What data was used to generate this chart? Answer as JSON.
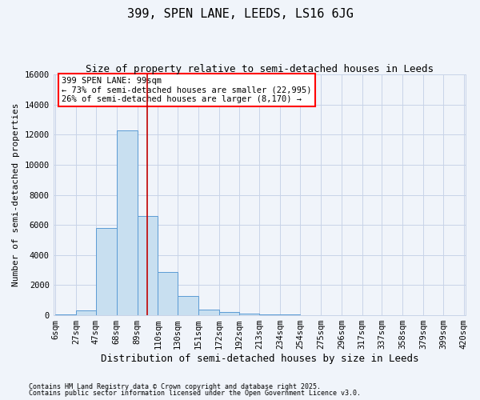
{
  "title": "399, SPEN LANE, LEEDS, LS16 6JG",
  "subtitle": "Size of property relative to semi-detached houses in Leeds",
  "xlabel": "Distribution of semi-detached houses by size in Leeds",
  "ylabel": "Number of semi-detached properties",
  "annotation_title": "399 SPEN LANE: 99sqm",
  "annotation_line1": "← 73% of semi-detached houses are smaller (22,995)",
  "annotation_line2": "26% of semi-detached houses are larger (8,170) →",
  "footer_line1": "Contains HM Land Registry data © Crown copyright and database right 2025.",
  "footer_line2": "Contains public sector information licensed under the Open Government Licence v3.0.",
  "bar_edges": [
    6,
    27,
    47,
    68,
    89,
    110,
    130,
    151,
    172,
    192,
    213,
    234,
    254,
    275,
    296,
    317,
    337,
    358,
    379,
    399,
    420
  ],
  "bar_heights": [
    60,
    300,
    5800,
    12300,
    6600,
    2900,
    1300,
    380,
    200,
    130,
    70,
    40,
    20,
    15,
    8,
    5,
    4,
    3,
    2,
    1
  ],
  "bar_color": "#c8dff0",
  "bar_edge_color": "#5b9bd5",
  "vline_x": 99,
  "vline_color": "#c00000",
  "ylim": [
    0,
    16000
  ],
  "yticks": [
    0,
    2000,
    4000,
    6000,
    8000,
    10000,
    12000,
    14000,
    16000
  ],
  "grid_color": "#c8d4e8",
  "background_color": "#f0f4fa",
  "plot_background": "#f0f4fa",
  "title_fontsize": 11,
  "subtitle_fontsize": 9,
  "tick_fontsize": 7.5,
  "ylabel_fontsize": 8,
  "xlabel_fontsize": 9
}
